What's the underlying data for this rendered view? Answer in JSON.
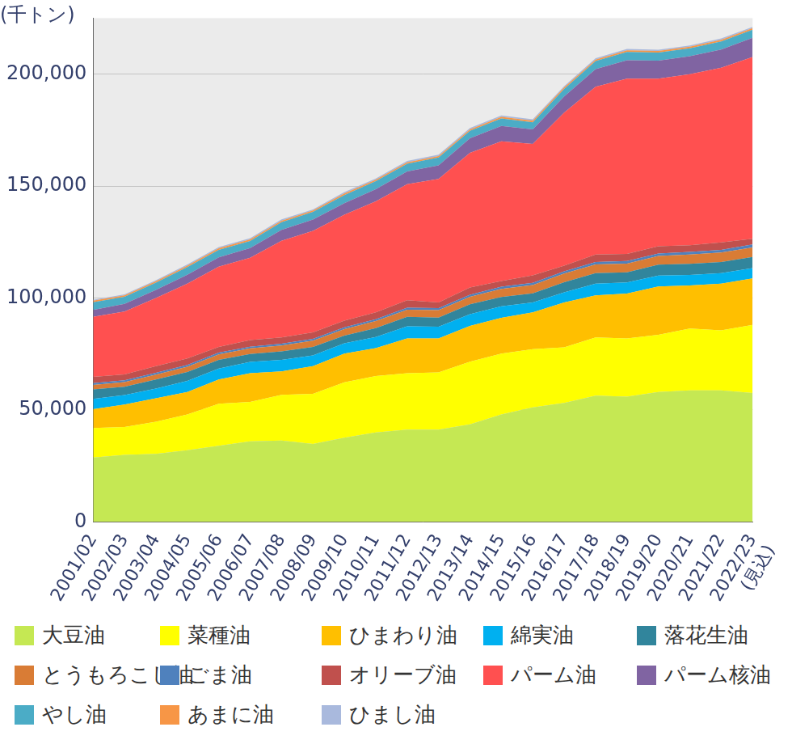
{
  "chart_data": {
    "type": "area",
    "y_label": "(千トン)",
    "stacked": true,
    "grid": true,
    "legend": "bottom",
    "categories": [
      "2001/02",
      "2002/03",
      "2003/04",
      "2004/05",
      "2005/06",
      "2006/07",
      "2007/08",
      "2008/09",
      "2009/10",
      "2010/11",
      "2011/12",
      "2012/13",
      "2013/14",
      "2014/15",
      "2015/16",
      "2016/17",
      "2017/18",
      "2018/19",
      "2019/20",
      "2020/21",
      "2021/22",
      [
        "2022/23",
        "(見込)"
      ]
    ],
    "ylim": [
      0,
      225000
    ],
    "yticks": [
      0,
      {
        "value": 50000,
        "label": "50,000"
      },
      {
        "value": 100000,
        "label": "100,000"
      },
      {
        "value": 150000,
        "label": "150,000"
      },
      {
        "value": 200000,
        "label": "200,000"
      }
    ],
    "series": [
      {
        "name": "大豆油",
        "color": "#c5e853",
        "values": [
          28800,
          30000,
          30400,
          32000,
          34000,
          36000,
          36400,
          34800,
          37600,
          40000,
          41200,
          41200,
          43600,
          48000,
          51200,
          53200,
          56400,
          56000,
          58000,
          58800,
          58800,
          57600
        ]
      },
      {
        "name": "菜種油",
        "color": "#ffff00",
        "values": [
          13200,
          12400,
          14400,
          16000,
          18800,
          17600,
          20400,
          22400,
          24800,
          25200,
          25200,
          25600,
          28000,
          27200,
          26000,
          24800,
          26000,
          26000,
          25600,
          27600,
          26800,
          30400
        ]
      },
      {
        "name": "ひまわり油",
        "color": "#ffbf00",
        "values": [
          8400,
          10000,
          10400,
          10000,
          10800,
          12800,
          10400,
          12400,
          12800,
          12400,
          15600,
          15200,
          16000,
          16000,
          16400,
          20000,
          18800,
          20000,
          21600,
          19200,
          20800,
          20800
        ]
      },
      {
        "name": "綿実油",
        "color": "#00b0f0",
        "values": [
          4600,
          4300,
          4400,
          5000,
          4900,
          5100,
          5200,
          4800,
          4600,
          5000,
          5400,
          5200,
          5200,
          5100,
          4400,
          4500,
          5200,
          5000,
          4800,
          4700,
          4700,
          4600
        ]
      },
      {
        "name": "落花生油",
        "color": "#31859c",
        "values": [
          4200,
          3700,
          4000,
          4000,
          3900,
          3500,
          3800,
          3800,
          3400,
          4000,
          4200,
          4100,
          4400,
          4200,
          4100,
          4600,
          4700,
          4500,
          4900,
          5000,
          5000,
          4900
        ]
      },
      {
        "name": "とうもろこし油",
        "color": "#d97c35",
        "values": [
          2000,
          2100,
          2200,
          2300,
          2400,
          2500,
          2600,
          2800,
          2900,
          3100,
          3200,
          3300,
          3400,
          3600,
          3700,
          3800,
          3900,
          3900,
          3900,
          4100,
          4200,
          4300
        ]
      },
      {
        "name": "ごま油",
        "color": "#4f81bd",
        "values": [
          800,
          800,
          800,
          800,
          800,
          800,
          800,
          800,
          800,
          800,
          900,
          900,
          900,
          1000,
          1000,
          1000,
          1100,
          1100,
          1100,
          1200,
          1200,
          1300
        ]
      },
      {
        "name": "オリーブ油",
        "color": "#c0504d",
        "values": [
          2800,
          2600,
          3000,
          2900,
          2600,
          2900,
          2800,
          2900,
          3000,
          3100,
          3300,
          2500,
          3200,
          2500,
          3300,
          2600,
          3300,
          3200,
          3200,
          3000,
          3300,
          2600
        ]
      },
      {
        "name": "パーム油",
        "color": "#ff5050",
        "values": [
          26800,
          28100,
          30400,
          33400,
          35800,
          36800,
          43200,
          45300,
          47300,
          49600,
          51800,
          55200,
          60100,
          62400,
          58700,
          68300,
          75000,
          78300,
          74900,
          76400,
          78000,
          81100
        ]
      },
      {
        "name": "パーム核油",
        "color": "#8064a2",
        "values": [
          3100,
          3400,
          3600,
          4000,
          4200,
          4300,
          4800,
          5000,
          5200,
          5400,
          5700,
          6000,
          6500,
          6800,
          6500,
          7200,
          7800,
          8200,
          8000,
          8000,
          8200,
          8600
        ]
      },
      {
        "name": "やし油",
        "color": "#4bacc6",
        "values": [
          3400,
          3200,
          3300,
          3400,
          3300,
          3200,
          3500,
          3500,
          3600,
          3600,
          3500,
          3600,
          3400,
          3400,
          3200,
          3400,
          3600,
          3700,
          3600,
          3500,
          3600,
          3600
        ]
      },
      {
        "name": "あまに油",
        "color": "#f79646",
        "values": [
          700,
          600,
          600,
          700,
          700,
          700,
          600,
          600,
          700,
          600,
          600,
          600,
          600,
          700,
          700,
          700,
          700,
          700,
          700,
          700,
          700,
          700
        ]
      },
      {
        "name": "ひまし油",
        "color": "#a9b9dd",
        "values": [
          400,
          400,
          500,
          500,
          600,
          500,
          600,
          500,
          600,
          600,
          600,
          600,
          600,
          600,
          600,
          500,
          600,
          600,
          600,
          600,
          600,
          600
        ]
      }
    ]
  }
}
